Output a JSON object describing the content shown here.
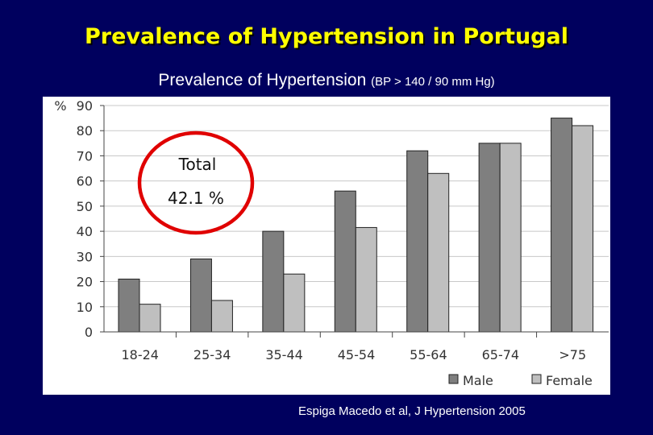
{
  "slide": {
    "title": "Prevalence of Hypertension in Portugal",
    "subtitle_main": "Prevalence of Hypertension",
    "subtitle_note": "(BP > 140 / 90 mm Hg)",
    "citation": "Espiga Macedo et al, J Hypertension 2005"
  },
  "callout": {
    "label": "Total",
    "value": "42.1 %",
    "ring_color": "#e00000"
  },
  "colors": {
    "male": "#7f7f7f",
    "female": "#bfbfbf",
    "background": "#00005e",
    "title": "#ffff00"
  },
  "chart_data": {
    "type": "bar",
    "title": "",
    "xlabel": "",
    "ylabel": "%",
    "ylim": [
      0,
      90
    ],
    "yticks": [
      0,
      10,
      20,
      30,
      40,
      50,
      60,
      70,
      80,
      90
    ],
    "grid": true,
    "legend_position": "bottom-right",
    "categories": [
      "18-24",
      "25-34",
      "35-44",
      "45-54",
      "55-64",
      "65-74",
      ">75"
    ],
    "series": [
      {
        "name": "Male",
        "values": [
          21,
          29,
          40,
          56,
          72,
          75,
          85
        ]
      },
      {
        "name": "Female",
        "values": [
          11,
          12.5,
          23,
          41.5,
          63,
          75,
          82
        ]
      }
    ]
  }
}
